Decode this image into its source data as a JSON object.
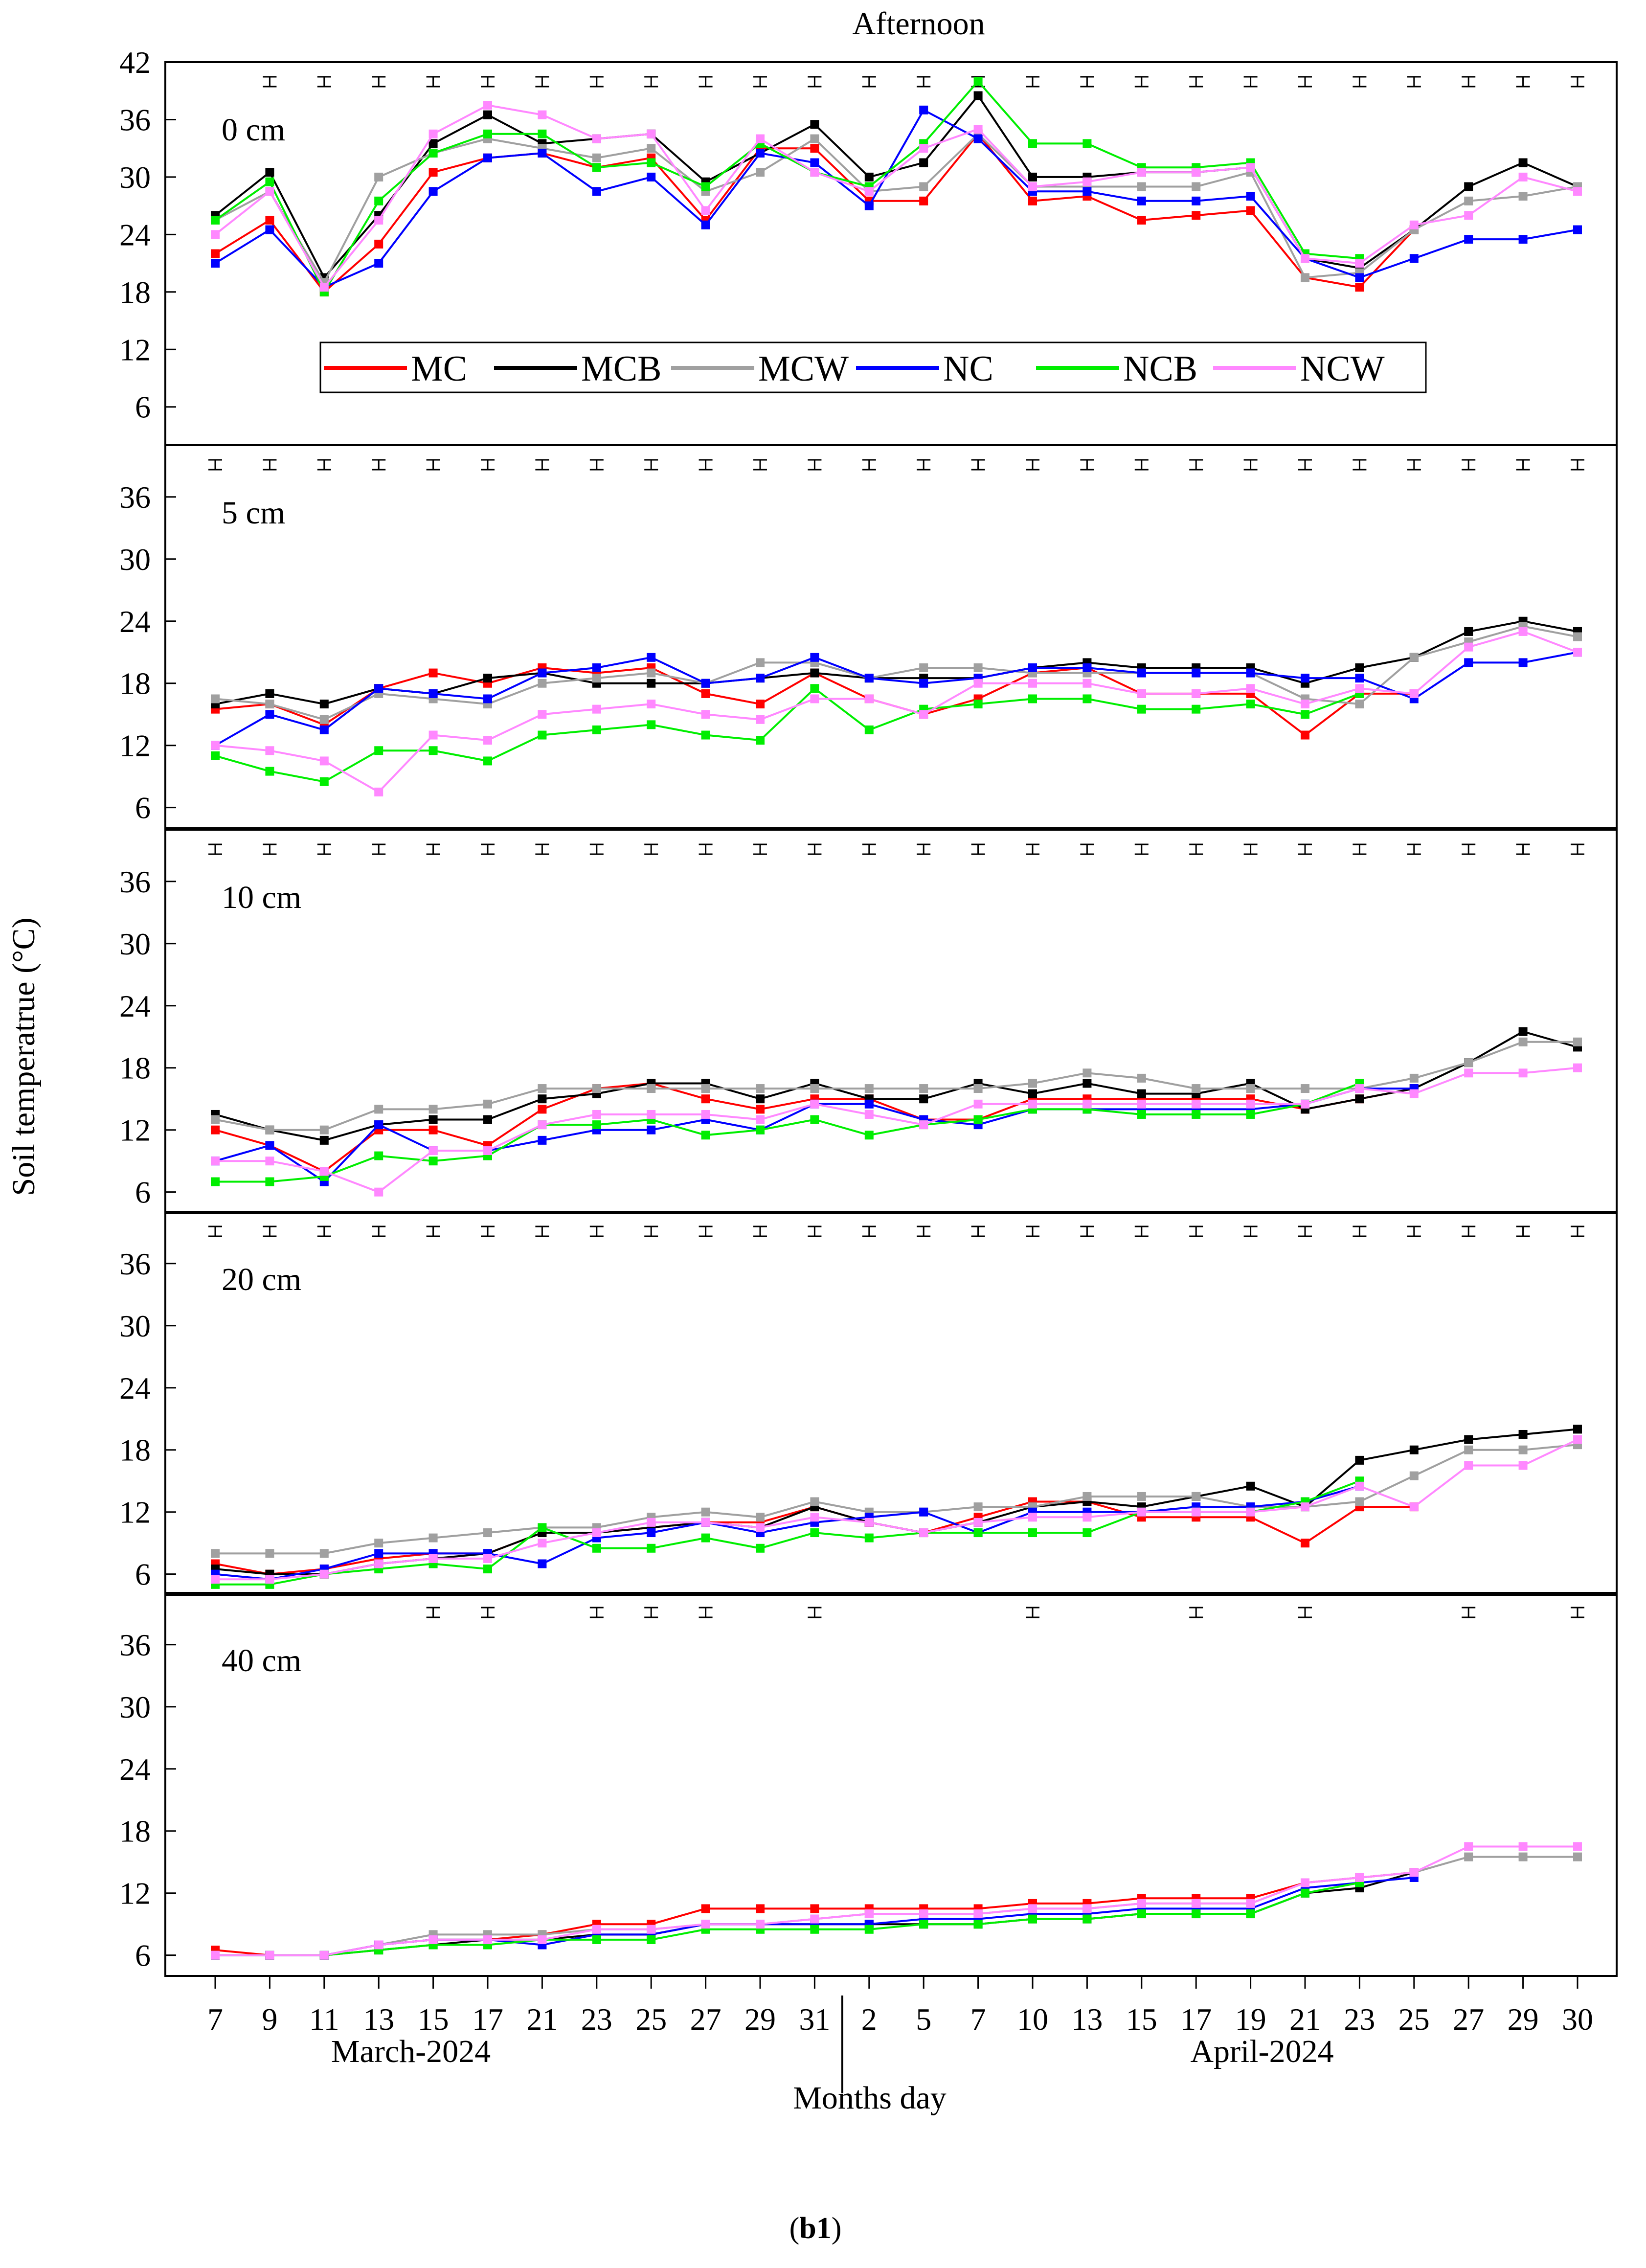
{
  "title": "Afternoon",
  "y_axis_title": "Soil temperatrue (°C)",
  "x_axis_title": "Months day",
  "caption_prefix": "(",
  "caption_bold": "b1",
  "caption_suffix": ")",
  "months": [
    "March-2024",
    "April-2024"
  ],
  "x_tick_labels": [
    "7",
    "9",
    "11",
    "13",
    "15",
    "17",
    "21",
    "23",
    "25",
    "27",
    "29",
    "31",
    "2",
    "5",
    "7",
    "10",
    "13",
    "15",
    "17",
    "19",
    "21",
    "23",
    "25",
    "27",
    "29",
    "30"
  ],
  "series_colors": {
    "MC": "#ff0000",
    "MCB": "#000000",
    "MCW": "#a0a0a0",
    "NC": "#0000ff",
    "NCB": "#00ee00",
    "NCW": "#ff88ff"
  },
  "chart_data": [
    {
      "type": "line",
      "depth": "0 cm",
      "y_ticks": [
        "42",
        "36",
        "30",
        "24",
        "18",
        "12",
        "6"
      ],
      "ylim": [
        2,
        42
      ],
      "legend": [
        "MC",
        "MCB",
        "MCW",
        "NC",
        "NCB",
        "NCW"
      ],
      "error_bars": [
        1,
        2,
        3,
        4,
        5,
        6,
        7,
        8,
        9,
        10,
        11,
        12,
        13,
        14,
        15,
        16,
        17,
        18,
        19,
        20,
        21,
        22,
        23,
        24,
        25
      ],
      "series": [
        {
          "name": "MC",
          "values": [
            22,
            25.5,
            18,
            23,
            30.5,
            32,
            32.5,
            31,
            32,
            25.5,
            33,
            33,
            27.5,
            27.5,
            34.5,
            27.5,
            28,
            25.5,
            26,
            26.5,
            19.5,
            18.5,
            24.5,
            null,
            null,
            null
          ]
        },
        {
          "name": "MCB",
          "values": [
            26,
            30.5,
            19.5,
            26,
            33.5,
            36.5,
            33.5,
            34,
            34.5,
            29.5,
            32.5,
            35.5,
            30,
            31.5,
            38.5,
            30,
            30,
            30.5,
            30.5,
            31,
            21.5,
            20.5,
            24.5,
            29,
            31.5,
            29
          ]
        },
        {
          "name": "MCW",
          "values": [
            25.5,
            28.5,
            19,
            30,
            32.5,
            34,
            33,
            32,
            33,
            28.5,
            30.5,
            34,
            28.5,
            29,
            34.5,
            29,
            29,
            29,
            29,
            30.5,
            19.5,
            20,
            24.5,
            27.5,
            28,
            29
          ]
        },
        {
          "name": "NC",
          "values": [
            21,
            24.5,
            18.5,
            21,
            28.5,
            32,
            32.5,
            28.5,
            30,
            25,
            32.5,
            31.5,
            27,
            37,
            34,
            28.5,
            28.5,
            27.5,
            27.5,
            28,
            21.5,
            19.5,
            21.5,
            23.5,
            23.5,
            24.5
          ]
        },
        {
          "name": "NCB",
          "values": [
            25.5,
            29.5,
            18,
            27.5,
            32.5,
            34.5,
            34.5,
            31,
            31.5,
            29,
            33.5,
            30.5,
            29,
            33.5,
            40,
            33.5,
            33.5,
            31,
            31,
            31.5,
            22,
            21.5,
            null,
            null,
            null,
            null
          ]
        },
        {
          "name": "NCW",
          "values": [
            24,
            28.5,
            18.5,
            25.5,
            34.5,
            37.5,
            36.5,
            34,
            34.5,
            26.5,
            34,
            30.5,
            28.5,
            33,
            35,
            29,
            29.5,
            30.5,
            30.5,
            31,
            21.5,
            21,
            25,
            26,
            30,
            28.5
          ]
        }
      ]
    },
    {
      "type": "line",
      "depth": "5 cm",
      "y_ticks": [
        "36",
        "30",
        "24",
        "18",
        "12",
        "6"
      ],
      "ylim": [
        4,
        41
      ],
      "error_bars": [
        0,
        1,
        2,
        3,
        4,
        5,
        6,
        7,
        8,
        9,
        10,
        11,
        12,
        13,
        14,
        15,
        16,
        17,
        18,
        19,
        20,
        21,
        22,
        23,
        24,
        25
      ],
      "series": [
        {
          "name": "MC",
          "values": [
            15.5,
            16,
            14,
            17.5,
            19,
            18,
            19.5,
            19,
            19.5,
            17,
            16,
            19,
            16.5,
            15,
            16.5,
            19,
            19.5,
            17,
            17,
            17,
            13,
            17,
            17,
            null,
            null,
            null
          ]
        },
        {
          "name": "MCB",
          "values": [
            16,
            17,
            16,
            17.5,
            17,
            18.5,
            19,
            18,
            18,
            18,
            18.5,
            19,
            18.5,
            18.5,
            18.5,
            19.5,
            20,
            19.5,
            19.5,
            19.5,
            18,
            19.5,
            20.5,
            23,
            24,
            23
          ]
        },
        {
          "name": "MCW",
          "values": [
            16.5,
            16,
            14.5,
            17,
            16.5,
            16,
            18,
            18.5,
            19,
            18,
            20,
            20,
            18.5,
            19.5,
            19.5,
            19,
            19,
            19,
            19,
            19,
            16.5,
            16,
            20.5,
            22,
            23.5,
            22.5
          ]
        },
        {
          "name": "NC",
          "values": [
            12,
            15,
            13.5,
            17.5,
            17,
            16.5,
            19,
            19.5,
            20.5,
            18,
            18.5,
            20.5,
            18.5,
            18,
            18.5,
            19.5,
            19.5,
            19,
            19,
            19,
            18.5,
            18.5,
            16.5,
            20,
            20,
            21
          ]
        },
        {
          "name": "NCB",
          "values": [
            11,
            9.5,
            8.5,
            11.5,
            11.5,
            10.5,
            13,
            13.5,
            14,
            13,
            12.5,
            17.5,
            13.5,
            15.5,
            16,
            16.5,
            16.5,
            15.5,
            15.5,
            16,
            15,
            17,
            null,
            null,
            null,
            null
          ]
        },
        {
          "name": "NCW",
          "values": [
            12,
            11.5,
            10.5,
            7.5,
            13,
            12.5,
            15,
            15.5,
            16,
            15,
            14.5,
            16.5,
            16.5,
            15,
            18,
            18,
            18,
            17,
            17,
            17.5,
            16,
            17.5,
            17,
            21.5,
            23,
            21
          ]
        }
      ]
    },
    {
      "type": "line",
      "depth": "10 cm",
      "y_ticks": [
        "36",
        "30",
        "24",
        "18",
        "12",
        "6"
      ],
      "ylim": [
        4,
        41
      ],
      "error_bars": [
        0,
        1,
        2,
        3,
        4,
        5,
        6,
        7,
        8,
        9,
        10,
        11,
        12,
        13,
        14,
        15,
        16,
        17,
        18,
        19,
        20,
        21,
        22,
        23,
        24,
        25
      ],
      "series": [
        {
          "name": "MC",
          "values": [
            12,
            10.5,
            8,
            12,
            12,
            10.5,
            14,
            16,
            16.5,
            15,
            14,
            15,
            15,
            13,
            13,
            15,
            15,
            15,
            15,
            15,
            14,
            15,
            16,
            null,
            null,
            null
          ]
        },
        {
          "name": "MCB",
          "values": [
            13.5,
            12,
            11,
            12.5,
            13,
            13,
            15,
            15.5,
            16.5,
            16.5,
            15,
            16.5,
            15,
            15,
            16.5,
            15.5,
            16.5,
            15.5,
            15.5,
            16.5,
            14,
            15,
            16,
            18.5,
            21.5,
            20
          ]
        },
        {
          "name": "MCW",
          "values": [
            13,
            12,
            12,
            14,
            14,
            14.5,
            16,
            16,
            16,
            16,
            16,
            16,
            16,
            16,
            16,
            16.5,
            17.5,
            17,
            16,
            16,
            16,
            16,
            17,
            18.5,
            20.5,
            20.5
          ]
        },
        {
          "name": "NC",
          "values": [
            9,
            10.5,
            7,
            12.5,
            10,
            10,
            11,
            12,
            12,
            13,
            12,
            14.5,
            14.5,
            13,
            12.5,
            14,
            14,
            14,
            14,
            14,
            14.5,
            16,
            16,
            null,
            null,
            null
          ]
        },
        {
          "name": "NCB",
          "values": [
            7,
            7,
            7.5,
            9.5,
            9,
            9.5,
            12.5,
            12.5,
            13,
            11.5,
            12,
            13,
            11.5,
            12.5,
            13,
            14,
            14,
            13.5,
            13.5,
            13.5,
            14.5,
            16.5,
            null,
            null,
            null,
            null
          ]
        },
        {
          "name": "NCW",
          "values": [
            9,
            9,
            8,
            6,
            10,
            10,
            12.5,
            13.5,
            13.5,
            13.5,
            13,
            14.5,
            13.5,
            12.5,
            14.5,
            14.5,
            14.5,
            14.5,
            14.5,
            14.5,
            14.5,
            16,
            15.5,
            17.5,
            17.5,
            18
          ]
        }
      ]
    },
    {
      "type": "line",
      "depth": "20 cm",
      "y_ticks": [
        "36",
        "30",
        "24",
        "18",
        "12",
        "6"
      ],
      "ylim": [
        4,
        41
      ],
      "error_bars": [
        0,
        1,
        2,
        3,
        4,
        5,
        6,
        7,
        8,
        9,
        10,
        11,
        12,
        13,
        14,
        15,
        16,
        17,
        18,
        19,
        20,
        21,
        22,
        23,
        24,
        25
      ],
      "series": [
        {
          "name": "MC",
          "values": [
            7,
            6,
            6.5,
            7.5,
            8,
            8,
            10,
            10,
            10.5,
            11,
            11,
            12.5,
            11,
            10,
            11.5,
            13,
            13,
            11.5,
            11.5,
            11.5,
            9,
            12.5,
            12.5,
            null,
            null,
            null
          ]
        },
        {
          "name": "MCB",
          "values": [
            6.5,
            6,
            6,
            7,
            7.5,
            8,
            10,
            10,
            10.5,
            11,
            10.5,
            12.5,
            11,
            10,
            11,
            12.5,
            13,
            12.5,
            13.5,
            14.5,
            12.5,
            17,
            18,
            19,
            19.5,
            20
          ]
        },
        {
          "name": "MCW",
          "values": [
            8,
            8,
            8,
            9,
            9.5,
            10,
            10.5,
            10.5,
            11.5,
            12,
            11.5,
            13,
            12,
            12,
            12.5,
            12.5,
            13.5,
            13.5,
            13.5,
            12.5,
            12.5,
            13,
            15.5,
            18,
            18,
            18.5
          ]
        },
        {
          "name": "NC",
          "values": [
            6,
            5.5,
            6.5,
            8,
            8,
            8,
            7,
            9.5,
            10,
            11,
            10,
            11,
            11.5,
            12,
            10,
            12,
            12,
            12,
            12.5,
            12.5,
            13,
            14.5,
            null,
            null,
            null,
            null
          ]
        },
        {
          "name": "NCB",
          "values": [
            5,
            5,
            6,
            6.5,
            7,
            6.5,
            10.5,
            8.5,
            8.5,
            9.5,
            8.5,
            10,
            9.5,
            10,
            10,
            10,
            10,
            12,
            12,
            12,
            13,
            15,
            null,
            null,
            null,
            null
          ]
        },
        {
          "name": "NCW",
          "values": [
            5.5,
            5.5,
            6,
            7,
            7.5,
            7.5,
            9,
            10,
            11,
            11,
            10.5,
            11.5,
            11,
            10,
            11,
            11.5,
            11.5,
            12,
            12,
            12,
            12.5,
            14.5,
            12.5,
            16.5,
            16.5,
            19
          ]
        }
      ]
    },
    {
      "type": "line",
      "depth": "40 cm",
      "y_ticks": [
        "36",
        "30",
        "24",
        "18",
        "12",
        "6"
      ],
      "ylim": [
        4,
        41
      ],
      "error_bars": [
        4,
        5,
        7,
        8,
        9,
        11,
        15,
        18,
        20,
        23,
        25
      ],
      "series": [
        {
          "name": "MC",
          "values": [
            6.5,
            6,
            6,
            7,
            7.5,
            7.5,
            8,
            9,
            9,
            10.5,
            10.5,
            10.5,
            10.5,
            10.5,
            10.5,
            11,
            11,
            11.5,
            11.5,
            11.5,
            13,
            13.5,
            14,
            null,
            null,
            null
          ]
        },
        {
          "name": "MCB",
          "values": [
            6,
            6,
            6,
            6.5,
            7,
            7.5,
            7.5,
            8,
            8,
            9,
            9,
            9,
            9,
            9,
            9,
            9.5,
            9.5,
            10,
            10,
            10,
            12,
            12.5,
            14,
            null,
            null,
            null
          ]
        },
        {
          "name": "MCW",
          "values": [
            6,
            6,
            6,
            7,
            8,
            8,
            8,
            8.5,
            8.5,
            9,
            9,
            9.5,
            10,
            10,
            10,
            10.5,
            10.5,
            11,
            11,
            11,
            13,
            13.5,
            14,
            15.5,
            15.5,
            15.5
          ]
        },
        {
          "name": "NC",
          "values": [
            6,
            6,
            6,
            7,
            7.5,
            7.5,
            7,
            8,
            8,
            9,
            9,
            9,
            9,
            9.5,
            9.5,
            10,
            10,
            10.5,
            10.5,
            10.5,
            12.5,
            13,
            13.5,
            null,
            null,
            null
          ]
        },
        {
          "name": "NCB",
          "values": [
            6,
            6,
            6,
            6.5,
            7,
            7,
            7.5,
            7.5,
            7.5,
            8.5,
            8.5,
            8.5,
            8.5,
            9,
            9,
            9.5,
            9.5,
            10,
            10,
            10,
            12,
            13,
            null,
            null,
            null,
            null
          ]
        },
        {
          "name": "NCW",
          "values": [
            6,
            6,
            6,
            7,
            7.5,
            7.5,
            7.5,
            8.5,
            8.5,
            9,
            9,
            9.5,
            10,
            10,
            10,
            10.5,
            10.5,
            11,
            11,
            11,
            13,
            13.5,
            14,
            16.5,
            16.5,
            16.5
          ]
        }
      ]
    }
  ]
}
